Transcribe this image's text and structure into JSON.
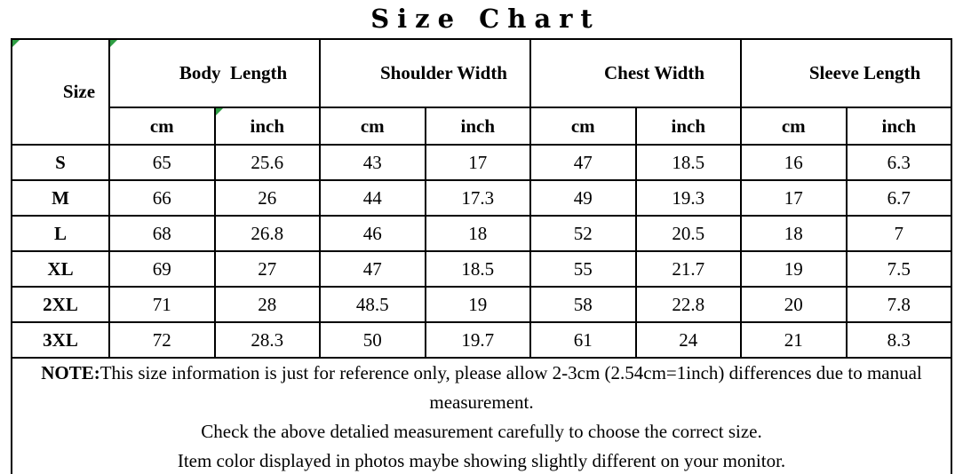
{
  "title": "Size Chart",
  "colors": {
    "marker_green": "#2e9e44",
    "border": "#000000",
    "text": "#000000",
    "background": "#ffffff"
  },
  "table": {
    "size_header": "Size",
    "groups": [
      {
        "label": "Body  Length",
        "units": [
          "cm",
          "inch"
        ]
      },
      {
        "label": "Shoulder Width",
        "units": [
          "cm",
          "inch"
        ]
      },
      {
        "label": "Chest Width",
        "units": [
          "cm",
          "inch"
        ]
      },
      {
        "label": "Sleeve Length",
        "units": [
          "cm",
          "inch"
        ]
      }
    ],
    "rows": [
      {
        "size": "S",
        "values": [
          "65",
          "25.6",
          "43",
          "17",
          "47",
          "18.5",
          "16",
          "6.3"
        ]
      },
      {
        "size": "M",
        "values": [
          "66",
          "26",
          "44",
          "17.3",
          "49",
          "19.3",
          "17",
          "6.7"
        ]
      },
      {
        "size": "L",
        "values": [
          "68",
          "26.8",
          "46",
          "18",
          "52",
          "20.5",
          "18",
          "7"
        ]
      },
      {
        "size": "XL",
        "values": [
          "69",
          "27",
          "47",
          "18.5",
          "55",
          "21.7",
          "19",
          "7.5"
        ]
      },
      {
        "size": "2XL",
        "values": [
          "71",
          "28",
          "48.5",
          "19",
          "58",
          "22.8",
          "20",
          "7.8"
        ]
      },
      {
        "size": "3XL",
        "values": [
          "72",
          "28.3",
          "50",
          "19.7",
          "61",
          "24",
          "21",
          "8.3"
        ]
      }
    ]
  },
  "notes": {
    "label": "NOTE:",
    "line1": "This size information is just for reference only, please allow 2-3cm (2.54cm=1inch) differences due to manual measurement.",
    "line2": "Check the above detalied measurement carefully to choose the correct size.",
    "line3": "Item color displayed in photos maybe showing slightly different on your monitor."
  },
  "chart_data": {
    "type": "table",
    "title": "Size Chart",
    "columns": [
      "Size",
      "Body Length (cm)",
      "Body Length (inch)",
      "Shoulder Width (cm)",
      "Shoulder Width (inch)",
      "Chest Width (cm)",
      "Chest Width (inch)",
      "Sleeve Length (cm)",
      "Sleeve Length (inch)"
    ],
    "rows": [
      [
        "S",
        65,
        25.6,
        43,
        17,
        47,
        18.5,
        16,
        6.3
      ],
      [
        "M",
        66,
        26,
        44,
        17.3,
        49,
        19.3,
        17,
        6.7
      ],
      [
        "L",
        68,
        26.8,
        46,
        18,
        52,
        20.5,
        18,
        7
      ],
      [
        "XL",
        69,
        27,
        47,
        18.5,
        55,
        21.7,
        19,
        7.5
      ],
      [
        "2XL",
        71,
        28,
        48.5,
        19,
        58,
        22.8,
        20,
        7.8
      ],
      [
        "3XL",
        72,
        28.3,
        50,
        19.7,
        61,
        24,
        21,
        8.3
      ]
    ]
  }
}
